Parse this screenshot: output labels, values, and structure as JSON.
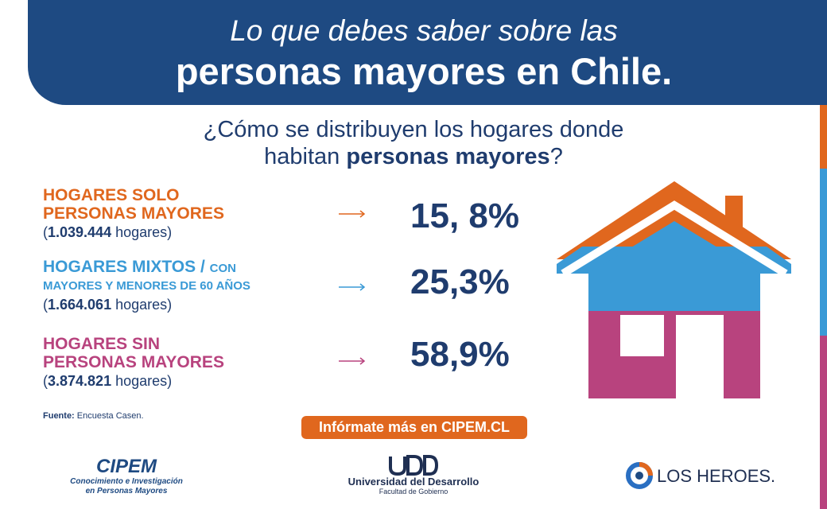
{
  "header": {
    "line1": "Lo que debes saber sobre las",
    "line2": "personas mayores en Chile."
  },
  "question": {
    "line1": "¿Cómo se distribuyen los hogares donde",
    "line2_prefix": "habitan ",
    "line2_bold": "personas mayores",
    "line2_suffix": "?"
  },
  "categories": [
    {
      "title_line1": "HOGARES SOLO",
      "title_line2": "PERSONAS MAYORES",
      "count_open": "(",
      "count_value": "1.039.444",
      "count_suffix": " hogares)",
      "percent": "15, 8%",
      "color": "#e0671e"
    },
    {
      "title_line1": "HOGARES MIXTOS / ",
      "title_line1_small": "CON",
      "title_line2": "MAYORES Y MENORES DE 60 AÑOS",
      "count_open": "(",
      "count_value": "1.664.061",
      "count_suffix": " hogares)",
      "percent": "25,3%",
      "color": "#3a9ad6"
    },
    {
      "title_line1": "HOGARES SIN",
      "title_line2": "PERSONAS MAYORES",
      "count_open": "(",
      "count_value": "3.874.821",
      "count_suffix": " hogares)",
      "percent": "58,9%",
      "color": "#b8437e"
    }
  ],
  "source": {
    "label": "Fuente:",
    "value": " Encuesta Casen."
  },
  "cta": {
    "label": "Infórmate más en CIPEM.CL"
  },
  "logos": {
    "cipem_name": "CIPEM",
    "cipem_sub1": "Conocimiento e Investigación",
    "cipem_sub2": "en Personas Mayores",
    "udd_name": "Universidad del Desarrollo",
    "udd_sub": "Facultad de Gobierno",
    "heroes_name": "LOS HEROES."
  },
  "colors": {
    "navy": "#1e4a82",
    "orange": "#e0671e",
    "blue": "#3a9ad6",
    "magenta": "#b8437e",
    "text_dark": "#1f3c6e"
  }
}
